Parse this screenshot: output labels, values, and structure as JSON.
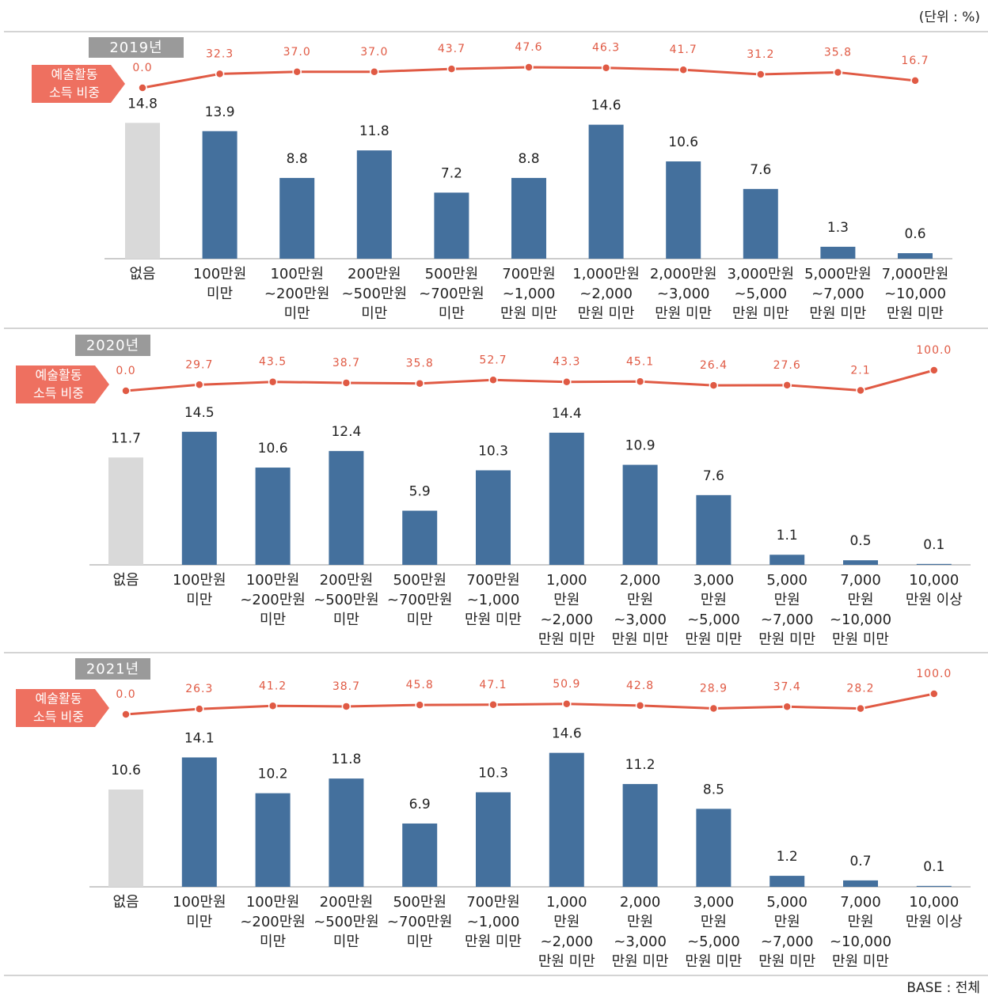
{
  "unit_label": "(단위 : %)",
  "footer": "BASE : 전체",
  "chart_data": [
    {
      "type": "bar",
      "title": "2019년",
      "categories": [
        [
          "없음"
        ],
        [
          "100만원",
          "미만"
        ],
        [
          "100만원",
          "~200만원",
          "미만"
        ],
        [
          "200만원",
          "~500만원",
          "미만"
        ],
        [
          "500만원",
          "~700만원",
          "미만"
        ],
        [
          "700만원",
          "~1,000",
          "만원 미만"
        ],
        [
          "1,000만원",
          "~2,000",
          "만원 미만"
        ],
        [
          "2,000만원",
          "~3,000",
          "만원 미만"
        ],
        [
          "3,000만원",
          "~5,000",
          "만원 미만"
        ],
        [
          "5,000만원",
          "~7,000",
          "만원 미만"
        ],
        [
          "7,000만원",
          "~10,000",
          "만원 미만"
        ]
      ],
      "series": [
        {
          "type": "bar",
          "colors": [
            "#d9d9d9",
            "#44709d",
            "#44709d",
            "#44709d",
            "#44709d",
            "#44709d",
            "#44709d",
            "#44709d",
            "#44709d",
            "#44709d",
            "#44709d"
          ],
          "values": [
            14.8,
            13.9,
            8.8,
            11.8,
            7.2,
            8.8,
            14.6,
            10.6,
            7.6,
            1.3,
            0.6
          ]
        },
        {
          "type": "line",
          "name": [
            "예술활동",
            "소득 비중"
          ],
          "color": "#e05a44",
          "values": [
            0.0,
            32.3,
            37.0,
            37.0,
            43.7,
            47.6,
            46.3,
            41.7,
            31.2,
            35.8,
            16.7
          ],
          "value_labels": [
            "0.0",
            "32.3",
            "37.0",
            "37.0",
            "43.7",
            "47.6",
            "46.3",
            "41.7",
            "31.2",
            "35.8",
            "16.7"
          ]
        }
      ]
    },
    {
      "type": "bar",
      "title": "2020년",
      "categories": [
        [
          "없음"
        ],
        [
          "100만원",
          "미만"
        ],
        [
          "100만원",
          "~200만원",
          "미만"
        ],
        [
          "200만원",
          "~500만원",
          "미만"
        ],
        [
          "500만원",
          "~700만원",
          "미만"
        ],
        [
          "700만원",
          "~1,000",
          "만원 미만"
        ],
        [
          "1,000",
          "만원",
          "~2,000",
          "만원 미만"
        ],
        [
          "2,000",
          "만원",
          "~3,000",
          "만원 미만"
        ],
        [
          "3,000",
          "만원",
          "~5,000",
          "만원 미만"
        ],
        [
          "5,000",
          "만원",
          "~7,000",
          "만원 미만"
        ],
        [
          "7,000",
          "만원",
          "~10,000",
          "만원 미만"
        ],
        [
          "10,000",
          "만원 이상"
        ]
      ],
      "series": [
        {
          "type": "bar",
          "colors": [
            "#d9d9d9",
            "#44709d",
            "#44709d",
            "#44709d",
            "#44709d",
            "#44709d",
            "#44709d",
            "#44709d",
            "#44709d",
            "#44709d",
            "#44709d",
            "#44709d"
          ],
          "values": [
            11.7,
            14.5,
            10.6,
            12.4,
            5.9,
            10.3,
            14.4,
            10.9,
            7.6,
            1.1,
            0.5,
            0.1
          ]
        },
        {
          "type": "line",
          "name": [
            "예술활동",
            "소득 비중"
          ],
          "color": "#e05a44",
          "values": [
            0.0,
            29.7,
            43.5,
            38.7,
            35.8,
            52.7,
            43.3,
            45.1,
            26.4,
            27.6,
            2.1,
            100.0
          ],
          "value_labels": [
            "0.0",
            "29.7",
            "43.5",
            "38.7",
            "35.8",
            "52.7",
            "43.3",
            "45.1",
            "26.4",
            "27.6",
            "2.1",
            "100.0"
          ]
        }
      ]
    },
    {
      "type": "bar",
      "title": "2021년",
      "categories": [
        [
          "없음"
        ],
        [
          "100만원",
          "미만"
        ],
        [
          "100만원",
          "~200만원",
          "미만"
        ],
        [
          "200만원",
          "~500만원",
          "미만"
        ],
        [
          "500만원",
          "~700만원",
          "미만"
        ],
        [
          "700만원",
          "~1,000",
          "만원 미만"
        ],
        [
          "1,000",
          "만원",
          "~2,000",
          "만원 미만"
        ],
        [
          "2,000",
          "만원",
          "~3,000",
          "만원 미만"
        ],
        [
          "3,000",
          "만원",
          "~5,000",
          "만원 미만"
        ],
        [
          "5,000",
          "만원",
          "~7,000",
          "만원 미만"
        ],
        [
          "7,000",
          "만원",
          "~10,000",
          "만원 미만"
        ],
        [
          "10,000",
          "만원 이상"
        ]
      ],
      "series": [
        {
          "type": "bar",
          "colors": [
            "#d9d9d9",
            "#44709d",
            "#44709d",
            "#44709d",
            "#44709d",
            "#44709d",
            "#44709d",
            "#44709d",
            "#44709d",
            "#44709d",
            "#44709d",
            "#44709d"
          ],
          "values": [
            10.6,
            14.1,
            10.2,
            11.8,
            6.9,
            10.3,
            14.6,
            11.2,
            8.5,
            1.2,
            0.7,
            0.1
          ]
        },
        {
          "type": "line",
          "name": [
            "예술활동",
            "소득 비중"
          ],
          "color": "#e05a44",
          "values": [
            0.0,
            26.3,
            41.2,
            38.7,
            45.8,
            47.1,
            50.9,
            42.8,
            28.9,
            37.4,
            28.2,
            100.0
          ],
          "value_labels": [
            "0.0",
            "26.3",
            "41.2",
            "38.7",
            "45.8",
            "47.1",
            "50.9",
            "42.8",
            "28.9",
            "37.4",
            "28.2",
            "100.0"
          ]
        }
      ]
    }
  ]
}
